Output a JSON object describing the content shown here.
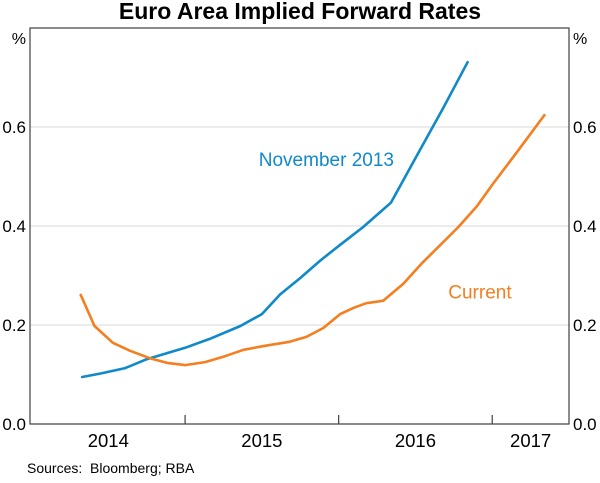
{
  "title": "Euro Area Implied Forward Rates",
  "sources": "Sources:  Bloomberg; RBA",
  "chart_data": {
    "type": "line",
    "title": "Euro Area Implied Forward Rates",
    "unit_label": "%",
    "x_range": [
      2013.99,
      2017.5
    ],
    "y_range": [
      0,
      0.8
    ],
    "grid": true,
    "grid_color": "#d9d9d9",
    "frame_color": "#3f3f3f",
    "y_ticks": [
      {
        "value": 0.0,
        "label": "0.0"
      },
      {
        "value": 0.2,
        "label": "0.2"
      },
      {
        "value": 0.4,
        "label": "0.4"
      },
      {
        "value": 0.6,
        "label": "0.6"
      }
    ],
    "x_boundary_ticks": [
      2015,
      2016,
      2017
    ],
    "x_year_labels": [
      {
        "year": "2014",
        "center": 2014.5
      },
      {
        "year": "2015",
        "center": 2015.5
      },
      {
        "year": "2016",
        "center": 2016.5
      },
      {
        "year": "2017",
        "center": 2017.25
      }
    ],
    "series": [
      {
        "name": "November 2013",
        "color": "#1089cb",
        "points": [
          [
            2014.33,
            0.095
          ],
          [
            2014.45,
            0.102
          ],
          [
            2014.61,
            0.113
          ],
          [
            2014.75,
            0.131
          ],
          [
            2014.88,
            0.143
          ],
          [
            2015.0,
            0.154
          ],
          [
            2015.16,
            0.172
          ],
          [
            2015.36,
            0.198
          ],
          [
            2015.5,
            0.222
          ],
          [
            2015.62,
            0.262
          ],
          [
            2015.75,
            0.295
          ],
          [
            2015.88,
            0.33
          ],
          [
            2016.01,
            0.362
          ],
          [
            2016.16,
            0.398
          ],
          [
            2016.34,
            0.447
          ],
          [
            2016.5,
            0.537
          ],
          [
            2016.68,
            0.638
          ],
          [
            2016.84,
            0.731
          ]
        ]
      },
      {
        "name": "Current",
        "color": "#f57e20",
        "points": [
          [
            2014.32,
            0.261
          ],
          [
            2014.41,
            0.198
          ],
          [
            2014.53,
            0.164
          ],
          [
            2014.64,
            0.148
          ],
          [
            2014.77,
            0.133
          ],
          [
            2014.89,
            0.123
          ],
          [
            2015.0,
            0.119
          ],
          [
            2015.13,
            0.125
          ],
          [
            2015.26,
            0.137
          ],
          [
            2015.38,
            0.15
          ],
          [
            2015.52,
            0.158
          ],
          [
            2015.68,
            0.166
          ],
          [
            2015.79,
            0.176
          ],
          [
            2015.9,
            0.194
          ],
          [
            2016.01,
            0.222
          ],
          [
            2016.1,
            0.235
          ],
          [
            2016.18,
            0.244
          ],
          [
            2016.29,
            0.249
          ],
          [
            2016.42,
            0.283
          ],
          [
            2016.54,
            0.324
          ],
          [
            2016.78,
            0.398
          ],
          [
            2016.9,
            0.44
          ],
          [
            2017.0,
            0.483
          ],
          [
            2017.17,
            0.553
          ],
          [
            2017.34,
            0.624
          ]
        ]
      }
    ],
    "annotations": [
      {
        "text": "November 2013",
        "color": "#1089cb",
        "x": 2015.92,
        "y": 0.535,
        "font_size": 19
      },
      {
        "text": "Current",
        "color": "#f57e20",
        "x": 2016.92,
        "y": 0.267,
        "font_size": 19
      }
    ]
  }
}
